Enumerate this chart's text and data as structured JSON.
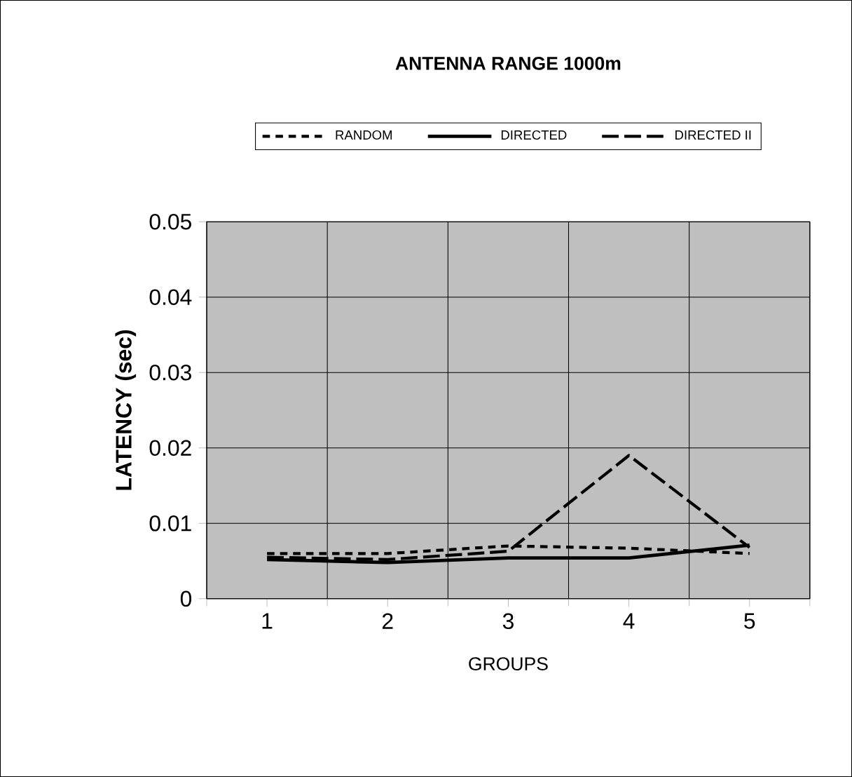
{
  "chart_data": {
    "type": "line",
    "title": "ANTENNA RANGE 1000m",
    "xlabel": "GROUPS",
    "ylabel": "LATENCY (sec)",
    "categories": [
      "1",
      "2",
      "3",
      "4",
      "5"
    ],
    "series": [
      {
        "name": "RANDOM",
        "color": "#000000",
        "line_style": "dashed",
        "values": [
          0.006,
          0.006,
          0.007,
          0.0067,
          0.006
        ]
      },
      {
        "name": "DIRECTED",
        "color": "#000000",
        "line_style": "solid",
        "values": [
          0.0052,
          0.0048,
          0.0054,
          0.0054,
          0.0071
        ]
      },
      {
        "name": "DIRECTED II",
        "color": "#000000",
        "line_style": "longdashed",
        "values": [
          0.0055,
          0.0052,
          0.0063,
          0.019,
          0.0068
        ]
      }
    ],
    "ylim": [
      0,
      0.05
    ],
    "yticks": [
      0,
      0.01,
      0.02,
      0.03,
      0.04,
      0.05
    ],
    "grid": true,
    "legend": "top",
    "marker": "none"
  }
}
